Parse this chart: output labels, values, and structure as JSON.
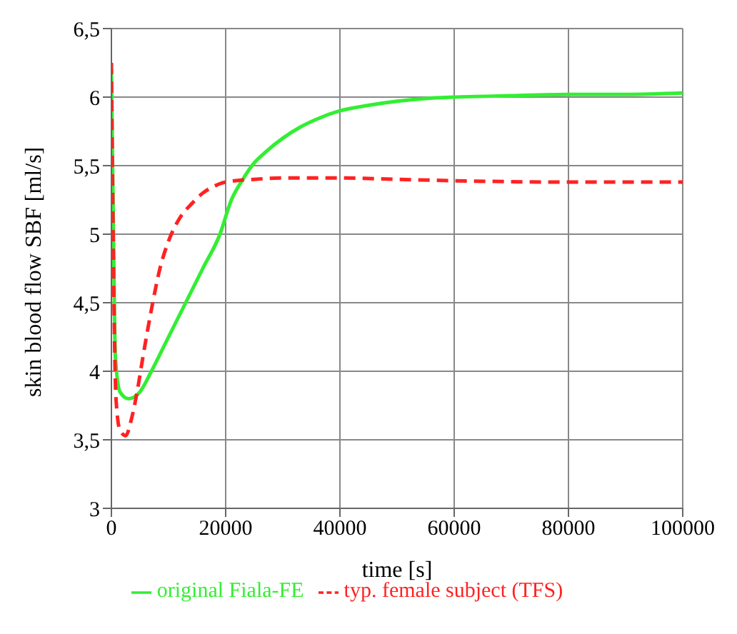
{
  "chart_data": {
    "type": "line",
    "xlabel": "time [s]",
    "ylabel": "skin blood flow SBF [ml/s]",
    "xlim": [
      0,
      100000
    ],
    "xticks": [
      0,
      20000,
      40000,
      60000,
      80000,
      100000
    ],
    "ylim": [
      3,
      6.5
    ],
    "yticks": [
      3,
      {
        "value": 3.5,
        "label": "3,5"
      },
      4,
      {
        "value": 4.5,
        "label": "4,5"
      },
      5,
      {
        "value": 5.5,
        "label": "5,5"
      },
      6,
      {
        "value": 6.5,
        "label": "6,5"
      }
    ],
    "grid": true,
    "legend": "bottom",
    "marker": "none",
    "series": [
      {
        "name": "original Fiala-FE",
        "color": "#33ee33",
        "line_style": "solid",
        "x": [
          0,
          300,
          700,
          1500,
          3000,
          5000,
          7000,
          10000,
          13000,
          16000,
          19000,
          21000,
          23000,
          25000,
          27000,
          30000,
          33000,
          36000,
          40000,
          45000,
          50000,
          55000,
          60000,
          70000,
          80000,
          90000,
          100000
        ],
        "values": [
          6.2,
          5.2,
          4.1,
          3.85,
          3.8,
          3.85,
          4.0,
          4.25,
          4.5,
          4.75,
          5.0,
          5.25,
          5.4,
          5.52,
          5.6,
          5.7,
          5.78,
          5.84,
          5.9,
          5.94,
          5.97,
          5.99,
          6.0,
          6.01,
          6.02,
          6.02,
          6.03
        ]
      },
      {
        "name": "typ. female subject (TFS)",
        "color": "#ff2222",
        "line_style": "dashed",
        "x": [
          0,
          300,
          800,
          1500,
          2500,
          3500,
          4500,
          5500,
          7000,
          8500,
          10000,
          12000,
          14000,
          16000,
          18000,
          20000,
          25000,
          30000,
          40000,
          50000,
          60000,
          80000,
          100000
        ],
        "values": [
          6.25,
          5.0,
          3.8,
          3.57,
          3.53,
          3.65,
          3.85,
          4.1,
          4.45,
          4.75,
          4.95,
          5.12,
          5.22,
          5.3,
          5.35,
          5.38,
          5.4,
          5.41,
          5.41,
          5.4,
          5.39,
          5.38,
          5.38
        ]
      }
    ]
  }
}
